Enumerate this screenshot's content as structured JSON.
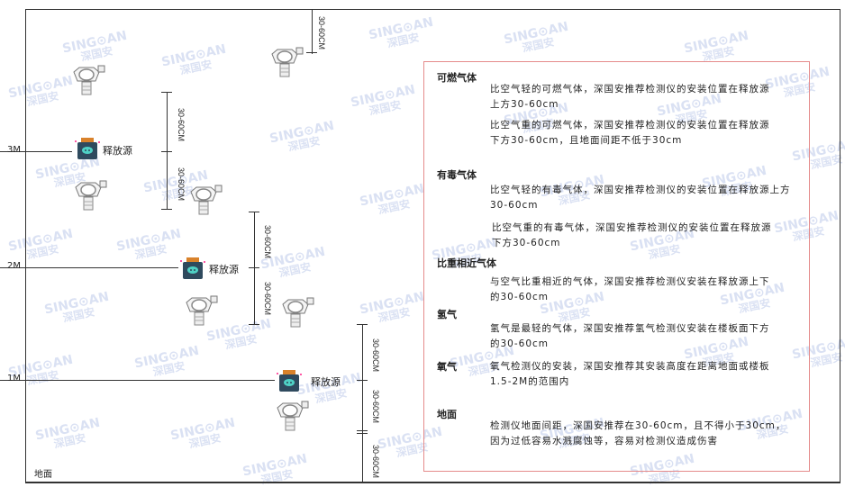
{
  "watermark": {
    "brand": "SING⊙AN",
    "cn": "深国安"
  },
  "floors": [
    {
      "label": "3M"
    },
    {
      "label": "2M"
    },
    {
      "label": "1M"
    }
  ],
  "ground_label": "地面",
  "release_source_label": "释放源",
  "dimension_label": "30-60CM",
  "info_box": {
    "sections": [
      {
        "heading": "可燃气体",
        "paragraphs": [
          "比空气轻的可燃气体，深国安推荐检测仪的安装位置在释放源上方30-60cm",
          "比空气重的可燃气体，深国安推荐检测仪的安装位置在释放源下方30-60cm，且地面间距不低于30cm"
        ]
      },
      {
        "heading": "有毒气体",
        "paragraphs": [
          "比空气轻的有毒气体，深国安推荐检测仪的安装位置在释放源上方30-60cm",
          "比空气重的有毒气体，深国安推荐检测仪的安装位置在释放源下方30-60cm"
        ]
      },
      {
        "heading": "比重相近气体",
        "paragraphs": [
          "与空气比重相近的气体，深国安推荐检测仪安装在释放源上下的30-60cm"
        ]
      },
      {
        "heading": "氢气",
        "paragraphs": [
          "氢气是最轻的气体，深国安推荐氢气检测仪安装在楼板面下方的30-60cm"
        ]
      },
      {
        "heading": "氧气",
        "paragraphs": [
          "氧气检测仪的安装，深国安推荐其安装高度在距离地面或楼板1.5-2M的范围内"
        ]
      },
      {
        "heading": "地面",
        "paragraphs": [
          "检测仪地面间距，深国安推荐在30-60cm，且不得小于30cm，因为过低容易水溅腐蚀等，容易对检测仪造成伤害"
        ]
      }
    ]
  },
  "colors": {
    "box_border": "#e58b8b",
    "source_body": "#2f4a5e",
    "source_top": "#d9822b",
    "source_face": "#4fd1c5"
  }
}
